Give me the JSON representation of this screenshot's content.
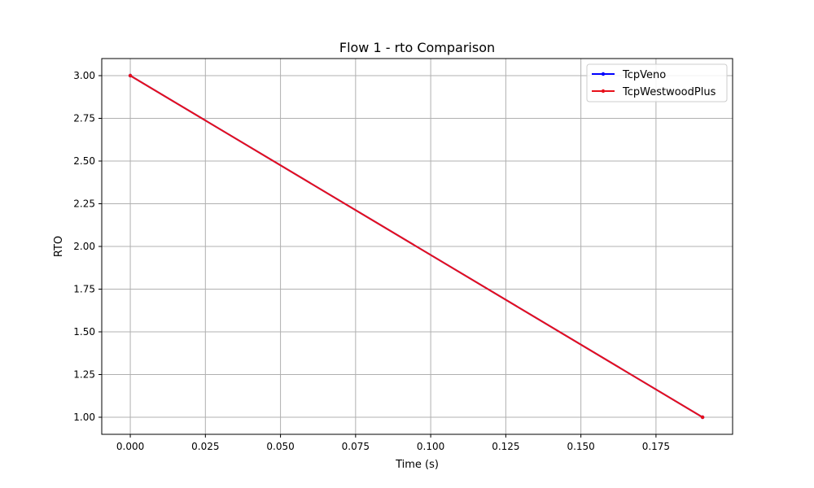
{
  "chart_data": {
    "type": "line",
    "title": "Flow 1 - rto Comparison",
    "xlabel": "Time (s)",
    "ylabel": "RTO",
    "xlim": [
      -0.0095,
      0.2005
    ],
    "ylim": [
      0.9,
      3.1
    ],
    "x_ticks": [
      0.0,
      0.025,
      0.05,
      0.075,
      0.1,
      0.125,
      0.15,
      0.175
    ],
    "x_tick_labels": [
      "0.000",
      "0.025",
      "0.050",
      "0.075",
      "0.100",
      "0.125",
      "0.150",
      "0.175"
    ],
    "y_ticks": [
      1.0,
      1.25,
      1.5,
      1.75,
      2.0,
      2.25,
      2.5,
      2.75,
      3.0
    ],
    "y_tick_labels": [
      "1.00",
      "1.25",
      "1.50",
      "1.75",
      "2.00",
      "2.25",
      "2.50",
      "2.75",
      "3.00"
    ],
    "grid": true,
    "legend_position": "top-right",
    "series": [
      {
        "name": "TcpVeno",
        "color": "#0000ff",
        "x": [
          0.0,
          0.1905
        ],
        "y": [
          3.0,
          1.0
        ]
      },
      {
        "name": "TcpWestwoodPlus",
        "color": "#e8101a",
        "x": [
          0.0,
          0.1905
        ],
        "y": [
          3.0,
          1.0
        ]
      }
    ]
  }
}
